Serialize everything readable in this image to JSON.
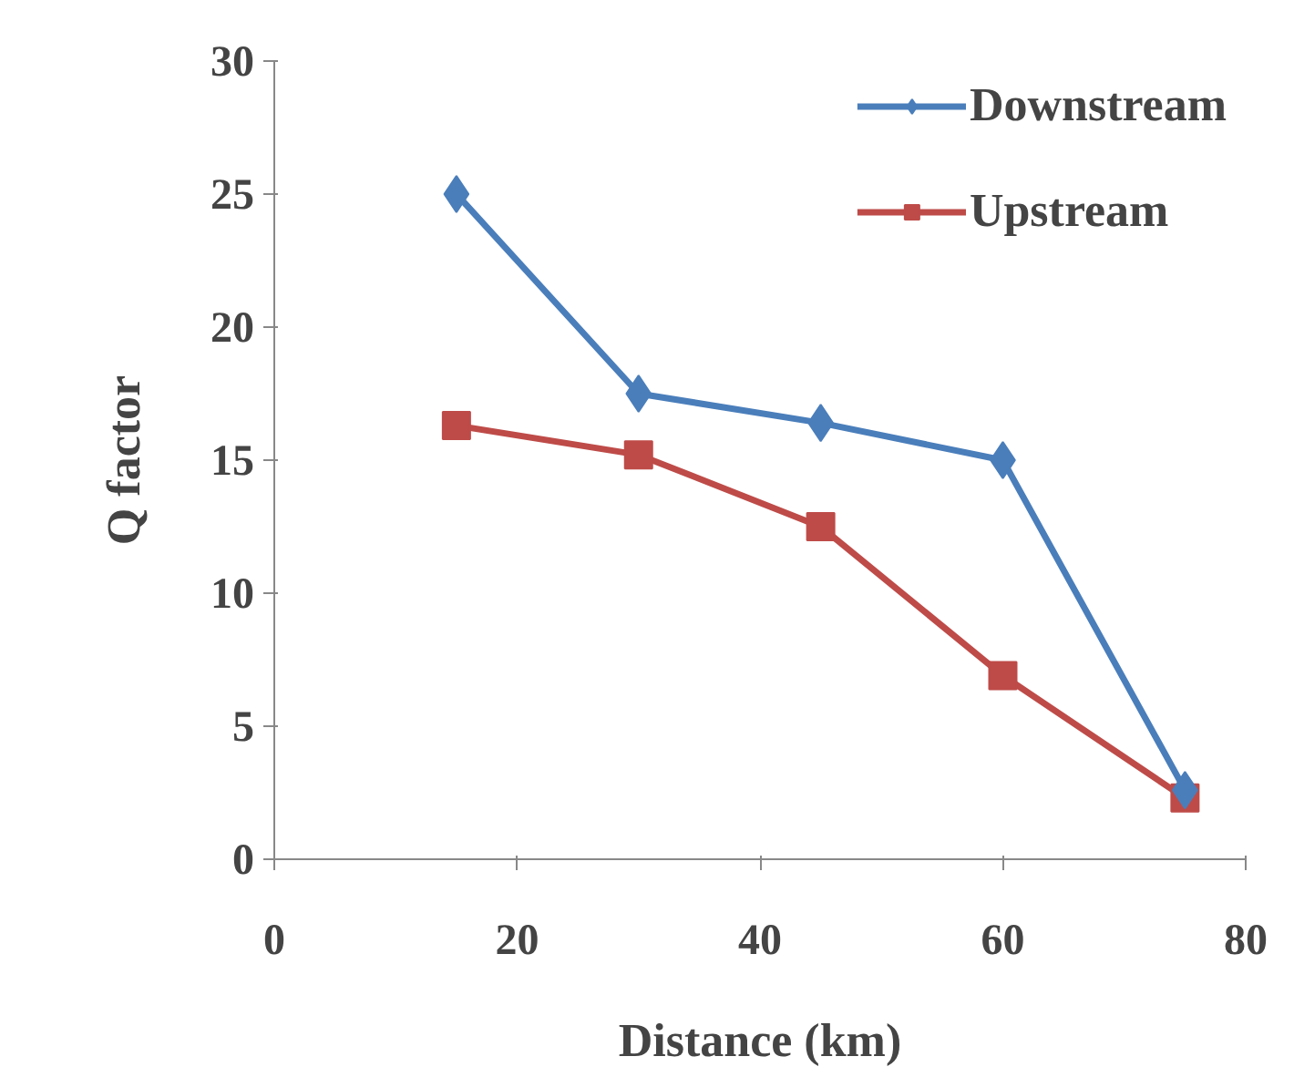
{
  "chart_data": {
    "type": "line",
    "xlabel": "Distance (km)",
    "ylabel": "Q factor",
    "x": [
      15,
      30,
      45,
      60,
      75
    ],
    "series": [
      {
        "name": "Downstream",
        "color": "#4a7ebb",
        "values": [
          25,
          17.5,
          16.4,
          15,
          2.6
        ],
        "marker": "diamond"
      },
      {
        "name": "Upstream",
        "color": "#be4b48",
        "values": [
          16.3,
          15.2,
          12.5,
          6.9,
          2.3
        ],
        "marker": "square"
      }
    ],
    "xlim": [
      0,
      80
    ],
    "xticks": [
      0,
      20,
      40,
      60,
      80
    ],
    "ylim": [
      0,
      30
    ],
    "yticks": [
      0,
      5,
      10,
      15,
      20,
      25,
      30
    ],
    "grid": false,
    "legend": "top right"
  }
}
